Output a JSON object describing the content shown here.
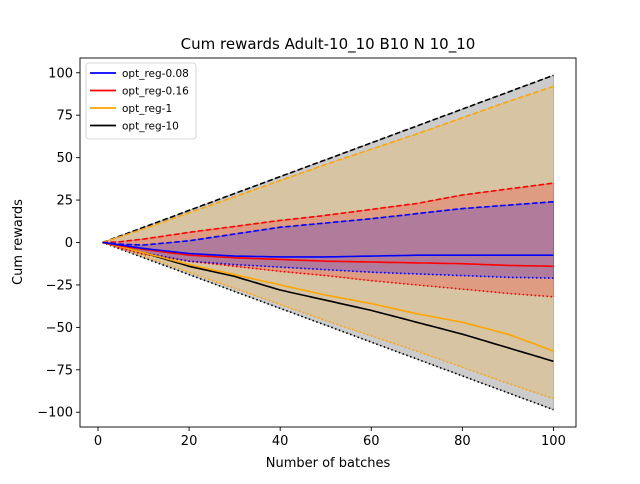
{
  "chart_data": {
    "type": "line",
    "title": "Cum rewards Adult-10_10 B10 N 10_10",
    "xlabel": "Number of batches",
    "ylabel": "Cum rewards",
    "xlim": [
      -3.95,
      104.95
    ],
    "ylim": [
      -108.7,
      108.7
    ],
    "xticks": [
      0,
      20,
      40,
      60,
      80,
      100
    ],
    "yticks": [
      -100,
      -75,
      -50,
      -25,
      0,
      25,
      50,
      75,
      100
    ],
    "x_start": 1,
    "x_end": 100,
    "grid": false,
    "legend_position": "top-left",
    "series": [
      {
        "name": "opt_reg-0.08",
        "color": "#0000ff",
        "mean": [
          [
            1,
            0
          ],
          [
            5,
            -1.5
          ],
          [
            10,
            -3.5
          ],
          [
            20,
            -6.5
          ],
          [
            30,
            -8
          ],
          [
            40,
            -8.5
          ],
          [
            50,
            -8.5
          ],
          [
            60,
            -8
          ],
          [
            70,
            -7.5
          ],
          [
            80,
            -7.5
          ],
          [
            90,
            -7.5
          ],
          [
            100,
            -7.5
          ]
        ],
        "upper": [
          [
            1,
            0
          ],
          [
            5,
            -1
          ],
          [
            10,
            -1.5
          ],
          [
            20,
            1
          ],
          [
            30,
            5
          ],
          [
            40,
            9
          ],
          [
            50,
            11.5
          ],
          [
            60,
            14
          ],
          [
            70,
            17
          ],
          [
            80,
            20
          ],
          [
            90,
            22
          ],
          [
            100,
            24
          ]
        ],
        "lower": [
          [
            1,
            0
          ],
          [
            5,
            -2.5
          ],
          [
            10,
            -6
          ],
          [
            20,
            -11
          ],
          [
            30,
            -13
          ],
          [
            40,
            -14.5
          ],
          [
            50,
            -16
          ],
          [
            60,
            -17.5
          ],
          [
            70,
            -18.5
          ],
          [
            80,
            -19.5
          ],
          [
            90,
            -20.5
          ],
          [
            100,
            -21
          ]
        ]
      },
      {
        "name": "opt_reg-0.16",
        "color": "#ff0000",
        "mean": [
          [
            1,
            0
          ],
          [
            5,
            -2
          ],
          [
            10,
            -4
          ],
          [
            20,
            -7.5
          ],
          [
            30,
            -9
          ],
          [
            40,
            -10
          ],
          [
            50,
            -11
          ],
          [
            60,
            -11.5
          ],
          [
            70,
            -12
          ],
          [
            80,
            -12.5
          ],
          [
            90,
            -13.5
          ],
          [
            100,
            -14
          ]
        ],
        "upper": [
          [
            1,
            0
          ],
          [
            5,
            0.5
          ],
          [
            10,
            2
          ],
          [
            20,
            6
          ],
          [
            30,
            9.5
          ],
          [
            40,
            13
          ],
          [
            50,
            16
          ],
          [
            60,
            19.5
          ],
          [
            70,
            23
          ],
          [
            80,
            28
          ],
          [
            90,
            31.5
          ],
          [
            100,
            35
          ]
        ],
        "lower": [
          [
            1,
            0
          ],
          [
            5,
            -3.5
          ],
          [
            10,
            -7
          ],
          [
            20,
            -11
          ],
          [
            30,
            -14
          ],
          [
            40,
            -17
          ],
          [
            50,
            -19.5
          ],
          [
            60,
            -22.5
          ],
          [
            70,
            -25
          ],
          [
            80,
            -27.5
          ],
          [
            90,
            -30
          ],
          [
            100,
            -32
          ]
        ]
      },
      {
        "name": "opt_reg-1",
        "color": "#ffa500",
        "mean": [
          [
            1,
            0
          ],
          [
            5,
            -2.5
          ],
          [
            10,
            -6
          ],
          [
            20,
            -13
          ],
          [
            30,
            -19
          ],
          [
            40,
            -25
          ],
          [
            50,
            -31
          ],
          [
            60,
            -36
          ],
          [
            70,
            -42
          ],
          [
            80,
            -47
          ],
          [
            90,
            -54
          ],
          [
            100,
            -64
          ]
        ],
        "upper": [
          [
            1,
            0
          ],
          [
            5,
            3.5
          ],
          [
            10,
            8
          ],
          [
            20,
            17.5
          ],
          [
            30,
            27
          ],
          [
            40,
            36.5
          ],
          [
            50,
            46
          ],
          [
            60,
            55
          ],
          [
            70,
            64
          ],
          [
            80,
            73.5
          ],
          [
            90,
            83
          ],
          [
            100,
            92
          ]
        ],
        "lower": [
          [
            1,
            0
          ],
          [
            5,
            -3.5
          ],
          [
            10,
            -8
          ],
          [
            20,
            -17.5
          ],
          [
            30,
            -27
          ],
          [
            40,
            -36.5
          ],
          [
            50,
            -46
          ],
          [
            60,
            -55
          ],
          [
            70,
            -64
          ],
          [
            80,
            -73.5
          ],
          [
            90,
            -83
          ],
          [
            100,
            -92
          ]
        ]
      },
      {
        "name": "opt_reg-10",
        "color": "#000000",
        "mean": [
          [
            1,
            0
          ],
          [
            5,
            -2.5
          ],
          [
            10,
            -6
          ],
          [
            20,
            -14
          ],
          [
            30,
            -20
          ],
          [
            40,
            -28
          ],
          [
            50,
            -34
          ],
          [
            60,
            -40
          ],
          [
            70,
            -47
          ],
          [
            80,
            -54
          ],
          [
            90,
            -62
          ],
          [
            100,
            -70
          ]
        ],
        "upper": [
          [
            1,
            0
          ],
          [
            100,
            98.5
          ]
        ],
        "lower": [
          [
            1,
            0
          ],
          [
            100,
            -98.5
          ]
        ]
      }
    ]
  }
}
